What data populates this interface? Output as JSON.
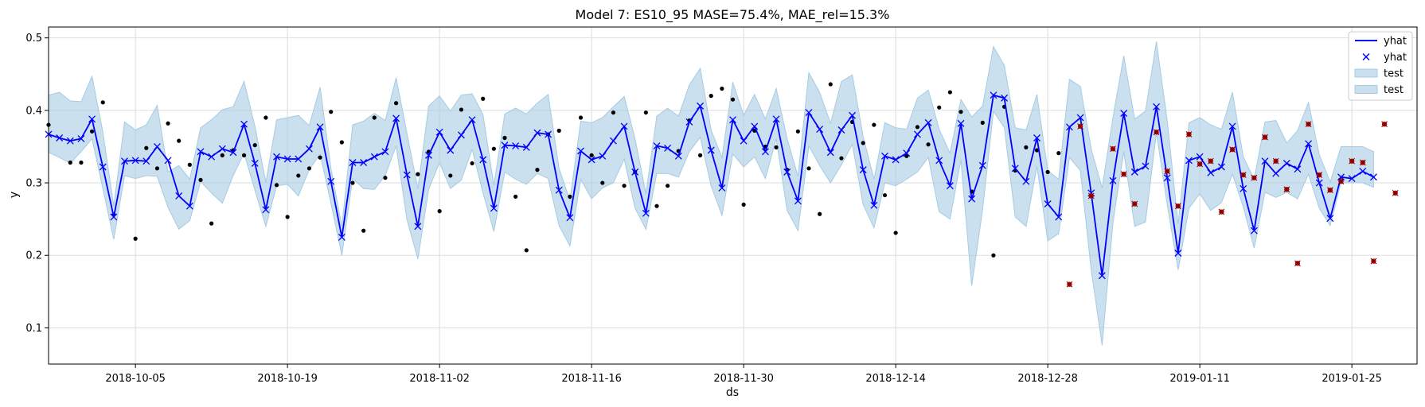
{
  "chart_data": {
    "type": "line",
    "title": "Model 7: ES10_95 MASE=75.4%, MAE_rel=15.3%",
    "xlabel": "ds",
    "ylabel": "y",
    "x_type": "date",
    "xlim": [
      "2018-09-27",
      "2019-01-31"
    ],
    "ylim": [
      0.05,
      0.515
    ],
    "x_ticks": [
      "2018-10-05",
      "2018-10-19",
      "2018-11-02",
      "2018-11-16",
      "2018-11-30",
      "2018-12-14",
      "2018-12-28",
      "2019-01-11",
      "2019-01-25"
    ],
    "y_ticks": [
      0.1,
      0.2,
      0.3,
      0.4,
      0.5
    ],
    "y_tick_labels": [
      "0.1",
      "0.2",
      "0.3",
      "0.4",
      "0.5"
    ],
    "grid": true,
    "legend_position": "top-right",
    "legend": [
      {
        "label": "yhat",
        "kind": "line",
        "color": "#0000ff"
      },
      {
        "label": "yhat",
        "kind": "marker-x",
        "color": "#0000ff"
      },
      {
        "label": "test",
        "kind": "patch",
        "color": "#a6cbe3"
      },
      {
        "label": "test",
        "kind": "patch",
        "color": "#a6cbe3"
      }
    ],
    "colors": {
      "forecast": "#0000ff",
      "interval": "#a6cbe3",
      "train": "#000000",
      "test": "#cc0000"
    },
    "start_date": "2018-09-27",
    "forecast": {
      "name": "yhat",
      "y": [
        0.367,
        0.362,
        0.358,
        0.361,
        0.388,
        0.322,
        0.253,
        0.33,
        0.331,
        0.33,
        0.35,
        0.331,
        0.282,
        0.268,
        0.343,
        0.336,
        0.347,
        0.342,
        0.381,
        0.327,
        0.263,
        0.336,
        0.333,
        0.333,
        0.347,
        0.377,
        0.302,
        0.225,
        0.328,
        0.328,
        0.336,
        0.343,
        0.389,
        0.311,
        0.24,
        0.338,
        0.37,
        0.345,
        0.366,
        0.387,
        0.332,
        0.265,
        0.352,
        0.351,
        0.349,
        0.369,
        0.367,
        0.29,
        0.252,
        0.344,
        0.332,
        0.337,
        0.358,
        0.378,
        0.315,
        0.258,
        0.351,
        0.348,
        0.337,
        0.384,
        0.406,
        0.345,
        0.293,
        0.387,
        0.358,
        0.378,
        0.343,
        0.388,
        0.315,
        0.275,
        0.397,
        0.374,
        0.342,
        0.373,
        0.393,
        0.318,
        0.269,
        0.337,
        0.332,
        0.341,
        0.367,
        0.383,
        0.331,
        0.296,
        0.382,
        0.278,
        0.324,
        0.421,
        0.417,
        0.32,
        0.302,
        0.362,
        0.271,
        0.253,
        0.377,
        0.39,
        0.286,
        0.172,
        0.303,
        0.396,
        0.315,
        0.323,
        0.405,
        0.307,
        0.203,
        0.331,
        0.336,
        0.314,
        0.322,
        0.378,
        0.292,
        0.234,
        0.33,
        0.313,
        0.327,
        0.319,
        0.354,
        0.3,
        0.251,
        0.308,
        0.306,
        0.316,
        0.308
      ],
      "lower": [
        0.342,
        0.335,
        0.327,
        0.343,
        0.361,
        0.292,
        0.222,
        0.31,
        0.306,
        0.31,
        0.309,
        0.266,
        0.236,
        0.248,
        0.302,
        0.286,
        0.272,
        0.31,
        0.341,
        0.29,
        0.24,
        0.296,
        0.298,
        0.282,
        0.318,
        0.34,
        0.272,
        0.2,
        0.306,
        0.292,
        0.291,
        0.31,
        0.351,
        0.249,
        0.195,
        0.291,
        0.328,
        0.292,
        0.304,
        0.346,
        0.286,
        0.233,
        0.315,
        0.305,
        0.298,
        0.313,
        0.306,
        0.241,
        0.213,
        0.305,
        0.278,
        0.293,
        0.3,
        0.333,
        0.265,
        0.236,
        0.313,
        0.313,
        0.308,
        0.343,
        0.363,
        0.296,
        0.255,
        0.34,
        0.322,
        0.336,
        0.306,
        0.361,
        0.262,
        0.234,
        0.351,
        0.324,
        0.3,
        0.325,
        0.353,
        0.27,
        0.238,
        0.3,
        0.296,
        0.305,
        0.315,
        0.335,
        0.26,
        0.25,
        0.332,
        0.158,
        0.263,
        0.399,
        0.376,
        0.253,
        0.24,
        0.323,
        0.22,
        0.23,
        0.335,
        0.317,
        0.18,
        0.076,
        0.245,
        0.343,
        0.24,
        0.246,
        0.369,
        0.27,
        0.18,
        0.265,
        0.285,
        0.262,
        0.273,
        0.312,
        0.267,
        0.21,
        0.287,
        0.28,
        0.287,
        0.278,
        0.312,
        0.265,
        0.241,
        0.3,
        0.3,
        0.3,
        0.294
      ],
      "upper": [
        0.421,
        0.425,
        0.413,
        0.412,
        0.447,
        0.37,
        0.268,
        0.384,
        0.373,
        0.38,
        0.407,
        0.315,
        0.324,
        0.305,
        0.376,
        0.387,
        0.401,
        0.405,
        0.44,
        0.378,
        0.301,
        0.387,
        0.39,
        0.393,
        0.379,
        0.432,
        0.32,
        0.24,
        0.38,
        0.385,
        0.396,
        0.386,
        0.445,
        0.368,
        0.292,
        0.406,
        0.42,
        0.399,
        0.421,
        0.423,
        0.394,
        0.296,
        0.395,
        0.403,
        0.395,
        0.41,
        0.422,
        0.32,
        0.276,
        0.385,
        0.383,
        0.39,
        0.405,
        0.419,
        0.361,
        0.285,
        0.392,
        0.403,
        0.392,
        0.435,
        0.458,
        0.373,
        0.335,
        0.439,
        0.393,
        0.422,
        0.388,
        0.43,
        0.361,
        0.309,
        0.452,
        0.425,
        0.382,
        0.44,
        0.449,
        0.364,
        0.305,
        0.383,
        0.376,
        0.374,
        0.417,
        0.428,
        0.374,
        0.341,
        0.415,
        0.391,
        0.406,
        0.488,
        0.462,
        0.376,
        0.373,
        0.422,
        0.317,
        0.305,
        0.443,
        0.433,
        0.347,
        0.293,
        0.39,
        0.475,
        0.388,
        0.399,
        0.495,
        0.386,
        0.243,
        0.383,
        0.39,
        0.38,
        0.374,
        0.425,
        0.336,
        0.305,
        0.384,
        0.386,
        0.355,
        0.372,
        0.411,
        0.339,
        0.301,
        0.35,
        0.35,
        0.35,
        0.343
      ]
    },
    "train_points": {
      "day": [
        0,
        2,
        3,
        4,
        5,
        6,
        8,
        9,
        10,
        11,
        12,
        13,
        14,
        15,
        16,
        17,
        18,
        19,
        20,
        21,
        22,
        23,
        24,
        25,
        26,
        27,
        28,
        29,
        30,
        31,
        32,
        34,
        35,
        36,
        37,
        38,
        39,
        40,
        41,
        42,
        43,
        44,
        45,
        46,
        47,
        48,
        49,
        50,
        51,
        52,
        53,
        54,
        55,
        56,
        57,
        58,
        59,
        60,
        61,
        62,
        63,
        64,
        65,
        66,
        67,
        68,
        69,
        70,
        71,
        72,
        73,
        74,
        75,
        76,
        77,
        78,
        79,
        80,
        81,
        82,
        83,
        84,
        85,
        86,
        87,
        88,
        89,
        90,
        91,
        92,
        93,
        94,
        95,
        96
      ],
      "y": [
        0.38,
        0.328,
        0.328,
        0.371,
        0.411,
        0.256,
        0.223,
        0.348,
        0.32,
        0.382,
        0.358,
        0.325,
        0.304,
        0.244,
        0.338,
        0.345,
        0.338,
        0.352,
        0.39,
        0.297,
        0.253,
        0.31,
        0.32,
        0.335,
        0.398,
        0.356,
        0.3,
        0.234,
        0.39,
        0.307,
        0.41,
        0.312,
        0.343,
        0.261,
        0.31,
        0.401,
        0.327,
        0.416,
        0.347,
        0.362,
        0.281,
        0.207,
        0.318,
        0.367,
        0.372,
        0.281,
        0.39,
        0.338,
        0.3,
        0.397,
        0.296,
        0.315,
        0.397,
        0.268,
        0.296,
        0.344,
        0.386,
        0.338,
        0.42,
        0.43,
        0.415,
        0.27,
        0.372,
        0.35,
        0.349,
        0.318,
        0.371,
        0.32,
        0.257,
        0.436,
        0.334,
        0.384,
        0.355,
        0.38,
        0.283,
        0.231,
        0.337,
        0.377,
        0.353,
        0.404,
        0.425,
        0.398,
        0.288,
        0.383,
        0.2,
        0.405,
        0.317,
        0.349,
        0.345,
        0.315,
        0.341,
        0.16,
        0.378,
        0.282
      ]
    },
    "test_points": {
      "day": [
        94,
        95,
        96,
        98,
        99,
        100,
        102,
        103,
        104,
        105,
        106,
        107,
        108,
        109,
        110,
        111,
        112,
        113,
        114,
        115,
        116,
        117,
        118,
        119,
        120,
        121,
        122,
        123,
        124
      ],
      "y": [
        0.16,
        0.378,
        0.282,
        0.347,
        0.312,
        0.271,
        0.37,
        0.316,
        0.268,
        0.367,
        0.326,
        0.33,
        0.26,
        0.346,
        0.311,
        0.307,
        0.363,
        0.33,
        0.291,
        0.189,
        0.381,
        0.311,
        0.29,
        0.302,
        0.33,
        0.328,
        0.192,
        0.381,
        0.286
      ]
    }
  }
}
